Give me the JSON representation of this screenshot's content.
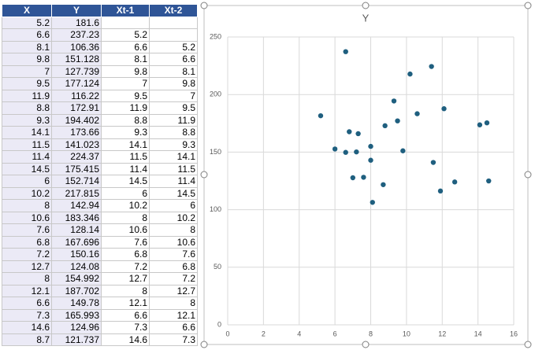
{
  "table": {
    "columns": [
      "X",
      "Y",
      "Xt-1",
      "Xt-2"
    ],
    "rows": [
      [
        5.2,
        181.6,
        null,
        null
      ],
      [
        6.6,
        237.23,
        5.2,
        null
      ],
      [
        8.1,
        106.36,
        6.6,
        5.2
      ],
      [
        9.8,
        151.128,
        8.1,
        6.6
      ],
      [
        7,
        127.739,
        9.8,
        8.1
      ],
      [
        9.5,
        177.124,
        7,
        9.8
      ],
      [
        11.9,
        116.22,
        9.5,
        7
      ],
      [
        8.8,
        172.91,
        11.9,
        9.5
      ],
      [
        9.3,
        194.402,
        8.8,
        11.9
      ],
      [
        14.1,
        173.66,
        9.3,
        8.8
      ],
      [
        11.5,
        141.023,
        14.1,
        9.3
      ],
      [
        11.4,
        224.37,
        11.5,
        14.1
      ],
      [
        14.5,
        175.415,
        11.4,
        11.5
      ],
      [
        6,
        152.714,
        14.5,
        11.4
      ],
      [
        10.2,
        217.815,
        6,
        14.5
      ],
      [
        8,
        142.94,
        10.2,
        6
      ],
      [
        10.6,
        183.346,
        8,
        10.2
      ],
      [
        7.6,
        128.14,
        10.6,
        8
      ],
      [
        6.8,
        167.696,
        7.6,
        10.6
      ],
      [
        7.2,
        150.16,
        6.8,
        7.6
      ],
      [
        12.7,
        124.08,
        7.2,
        6.8
      ],
      [
        8,
        154.992,
        12.7,
        7.2
      ],
      [
        12.1,
        187.702,
        8,
        12.7
      ],
      [
        6.6,
        149.78,
        12.1,
        8
      ],
      [
        7.3,
        165.993,
        6.6,
        12.1
      ],
      [
        14.6,
        124.96,
        7.3,
        6.6
      ],
      [
        8.7,
        121.737,
        14.6,
        7.3
      ]
    ]
  },
  "chart_data": {
    "type": "scatter",
    "title": "Y",
    "x": [
      5.2,
      6.6,
      8.1,
      9.8,
      7,
      9.5,
      11.9,
      8.8,
      9.3,
      14.1,
      11.5,
      11.4,
      14.5,
      6,
      10.2,
      8,
      10.6,
      7.6,
      6.8,
      7.2,
      12.7,
      8,
      12.1,
      6.6,
      7.3,
      14.6,
      8.7
    ],
    "values": [
      181.6,
      237.23,
      106.36,
      151.128,
      127.739,
      177.124,
      116.22,
      172.91,
      194.402,
      173.66,
      141.023,
      224.37,
      175.415,
      152.714,
      217.815,
      142.94,
      183.346,
      128.14,
      167.696,
      150.16,
      124.08,
      154.992,
      187.702,
      149.78,
      165.993,
      124.96,
      121.737
    ],
    "color": "#1f5f7f",
    "xlim": [
      0,
      16
    ],
    "xticks": [
      0,
      2,
      4,
      6,
      8,
      10,
      12,
      14,
      16
    ],
    "ylim": [
      0,
      250
    ],
    "yticks": [
      0,
      50,
      100,
      150,
      200,
      250
    ],
    "grid": true
  }
}
